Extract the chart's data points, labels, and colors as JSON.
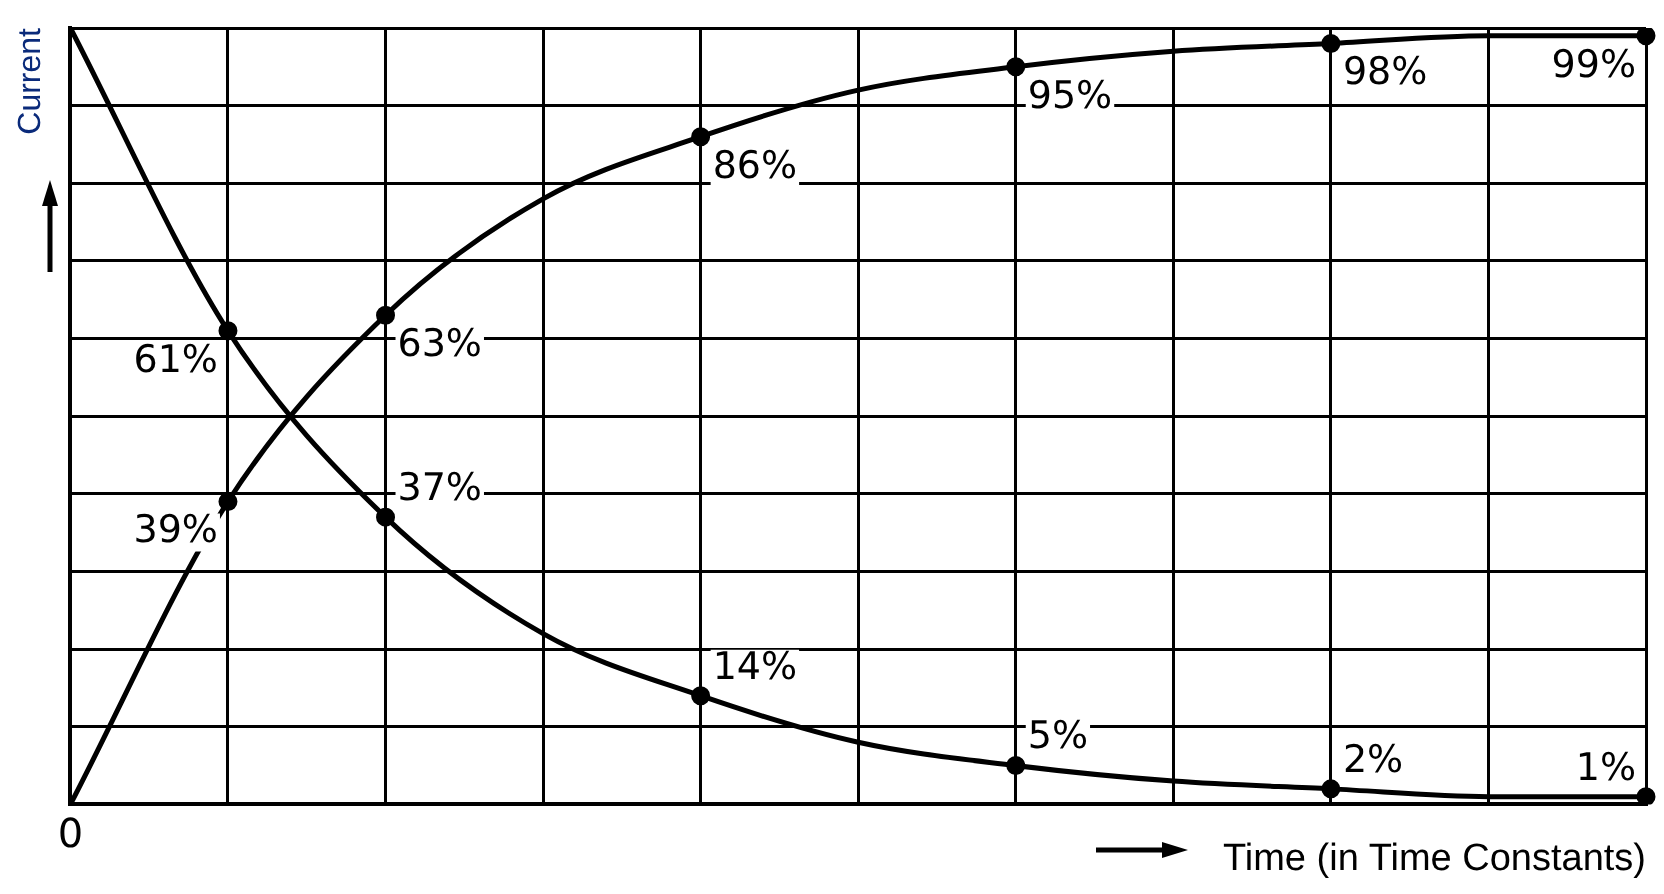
{
  "chart_data": {
    "type": "line",
    "xlabel": "Time (in Time Constants)",
    "ylabel": "Current",
    "categories": [
      null,
      null,
      null,
      null,
      null,
      null,
      null,
      null,
      null,
      null,
      null
    ],
    "ylim": [
      0,
      100
    ],
    "yticks": [
      {
        "value": 0,
        "label": null
      },
      {
        "value": 10,
        "label": null
      },
      {
        "value": 20,
        "label": null
      },
      {
        "value": 30,
        "label": null
      },
      {
        "value": 40,
        "label": null
      },
      {
        "value": 50,
        "label": null
      },
      {
        "value": 60,
        "label": null
      },
      {
        "value": 70,
        "label": null
      },
      {
        "value": 80,
        "label": null
      },
      {
        "value": 90,
        "label": null
      },
      {
        "value": 100,
        "label": null
      }
    ],
    "annotations": [
      "0"
    ],
    "tick_labels": false,
    "grid": true,
    "legend": false,
    "marker": "circle",
    "line_style": "solid",
    "series": [
      {
        "color": "#000000",
        "values": [
          0,
          39,
          63,
          78,
          86,
          92,
          95,
          97,
          98,
          99,
          99
        ],
        "value_labels": [
          null,
          "39%",
          "63%",
          null,
          "86%",
          null,
          "95%",
          null,
          "98%",
          null,
          "99%"
        ]
      },
      {
        "color": "#000000",
        "values": [
          100,
          61,
          37,
          22,
          14,
          8,
          5,
          3,
          2,
          1,
          1
        ],
        "value_labels": [
          null,
          "61%",
          "37%",
          null,
          "14%",
          null,
          "5%",
          null,
          "2%",
          null,
          "1%"
        ]
      }
    ]
  }
}
